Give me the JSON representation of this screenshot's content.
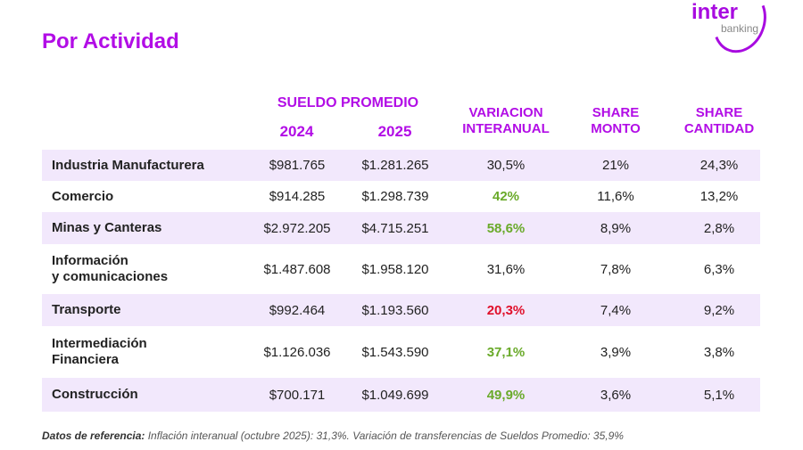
{
  "title": "Por Actividad",
  "logo": {
    "text": "inter",
    "sub": "banking"
  },
  "headers": {
    "sueldo": "SUELDO PROMEDIO",
    "y2024": "2024",
    "y2025": "2025",
    "variacion": [
      "VARIACION",
      "INTERANUAL"
    ],
    "share_monto": [
      "SHARE",
      "MONTO"
    ],
    "share_cantidad": [
      "SHARE",
      "CANTIDAD"
    ]
  },
  "colors": {
    "accent": "#b20de6",
    "green": "#6aaa2a",
    "red": "#e0102b",
    "row_shade": "#f2e8fc"
  },
  "rows": [
    {
      "label": [
        "Industria Manufacturera"
      ],
      "s2024": "$981.765",
      "s2025": "$1.281.265",
      "var": "30,5%",
      "var_color": "",
      "monto": "21%",
      "cantidad": "24,3%"
    },
    {
      "label": [
        "Comercio"
      ],
      "s2024": "$914.285",
      "s2025": "$1.298.739",
      "var": "42%",
      "var_color": "green",
      "monto": "11,6%",
      "cantidad": "13,2%"
    },
    {
      "label": [
        "Minas y Canteras"
      ],
      "s2024": "$2.972.205",
      "s2025": "$4.715.251",
      "var": "58,6%",
      "var_color": "green",
      "monto": "8,9%",
      "cantidad": "2,8%"
    },
    {
      "label": [
        "Información",
        "y comunicaciones"
      ],
      "s2024": "$1.487.608",
      "s2025": "$1.958.120",
      "var": "31,6%",
      "var_color": "",
      "monto": "7,8%",
      "cantidad": "6,3%"
    },
    {
      "label": [
        "Transporte"
      ],
      "s2024": "$992.464",
      "s2025": "$1.193.560",
      "var": "20,3%",
      "var_color": "red",
      "monto": "7,4%",
      "cantidad": "9,2%"
    },
    {
      "label": [
        "Intermediación",
        "Financiera"
      ],
      "s2024": "$1.126.036",
      "s2025": "$1.543.590",
      "var": "37,1%",
      "var_color": "green",
      "monto": "3,9%",
      "cantidad": "3,8%"
    },
    {
      "label": [
        "Construcción"
      ],
      "s2024": "$700.171",
      "s2025": "$1.049.699",
      "var": "49,9%",
      "var_color": "green",
      "monto": "3,6%",
      "cantidad": "5,1%"
    }
  ],
  "footer": {
    "label": "Datos de referencia:",
    "text": " Inflación interanual (octubre 2025): 31,3%. Variación de transferencias de Sueldos Promedio: 35,9%"
  }
}
